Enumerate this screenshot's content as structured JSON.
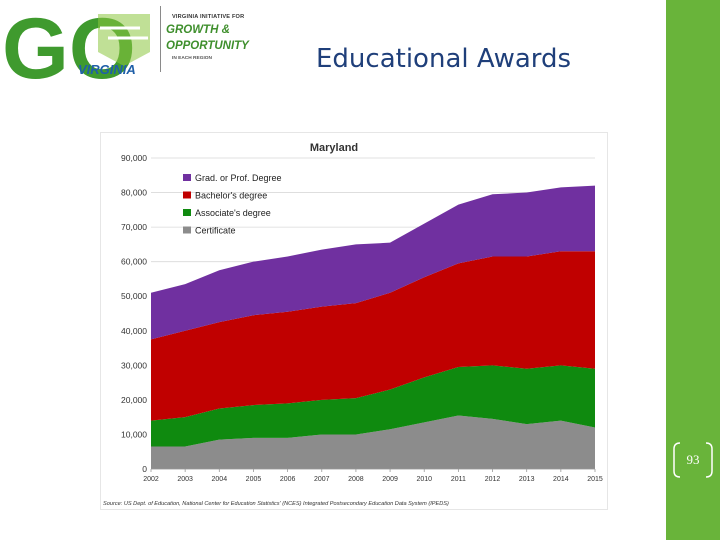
{
  "slide": {
    "title": "Educational Awards",
    "page_number": "93"
  },
  "logo": {
    "go_letters": "GO",
    "initiative": "VIRGINIA INITIATIVE FOR",
    "line1": "GROWTH &",
    "line2": "OPPORTUNITY",
    "region": "IN EACH REGION",
    "virginia": "VIRGINIA"
  },
  "colors": {
    "accent_green": "#69b43a",
    "title_blue": "#1f3f7a"
  },
  "chart_data": {
    "type": "area",
    "stacked": true,
    "title": "Maryland",
    "ylabel": "",
    "xlabel": "",
    "x": [
      "2002",
      "2003",
      "2004",
      "2005",
      "2006",
      "2007",
      "2008",
      "2009",
      "2010",
      "2011",
      "2012",
      "2013",
      "2014",
      "2015"
    ],
    "ylim": [
      0,
      90000
    ],
    "yticks": [
      "0",
      "10,000",
      "20,000",
      "30,000",
      "40,000",
      "50,000",
      "60,000",
      "70,000",
      "80,000",
      "90,000"
    ],
    "legend_position": "top-left",
    "series": [
      {
        "name": "Certificate",
        "color": "#8c8c8c",
        "values": [
          6500,
          6500,
          8500,
          9000,
          9000,
          10000,
          10000,
          11500,
          13500,
          15500,
          14500,
          13000,
          14000,
          12000
        ]
      },
      {
        "name": "Associate's degree",
        "color": "#0f8a0f",
        "values": [
          7500,
          8500,
          9000,
          9500,
          10000,
          10000,
          10500,
          11500,
          13000,
          14000,
          15500,
          16000,
          16000,
          17000
        ]
      },
      {
        "name": "Bachelor's degree",
        "color": "#c00000",
        "values": [
          23500,
          25000,
          25000,
          26000,
          26500,
          27000,
          27500,
          28000,
          29000,
          30000,
          31500,
          32500,
          33000,
          34000
        ]
      },
      {
        "name": "Grad. or Prof. Degree",
        "color": "#7030a0",
        "values": [
          13500,
          13500,
          15000,
          15500,
          16000,
          16500,
          17000,
          14500,
          15500,
          17000,
          18000,
          18500,
          18500,
          19000
        ]
      }
    ],
    "source": "Source: US Dept. of Education, National Center for Education Statistics' (NCES) Integrated Postsecondary Education Data System (IPEDS)"
  }
}
